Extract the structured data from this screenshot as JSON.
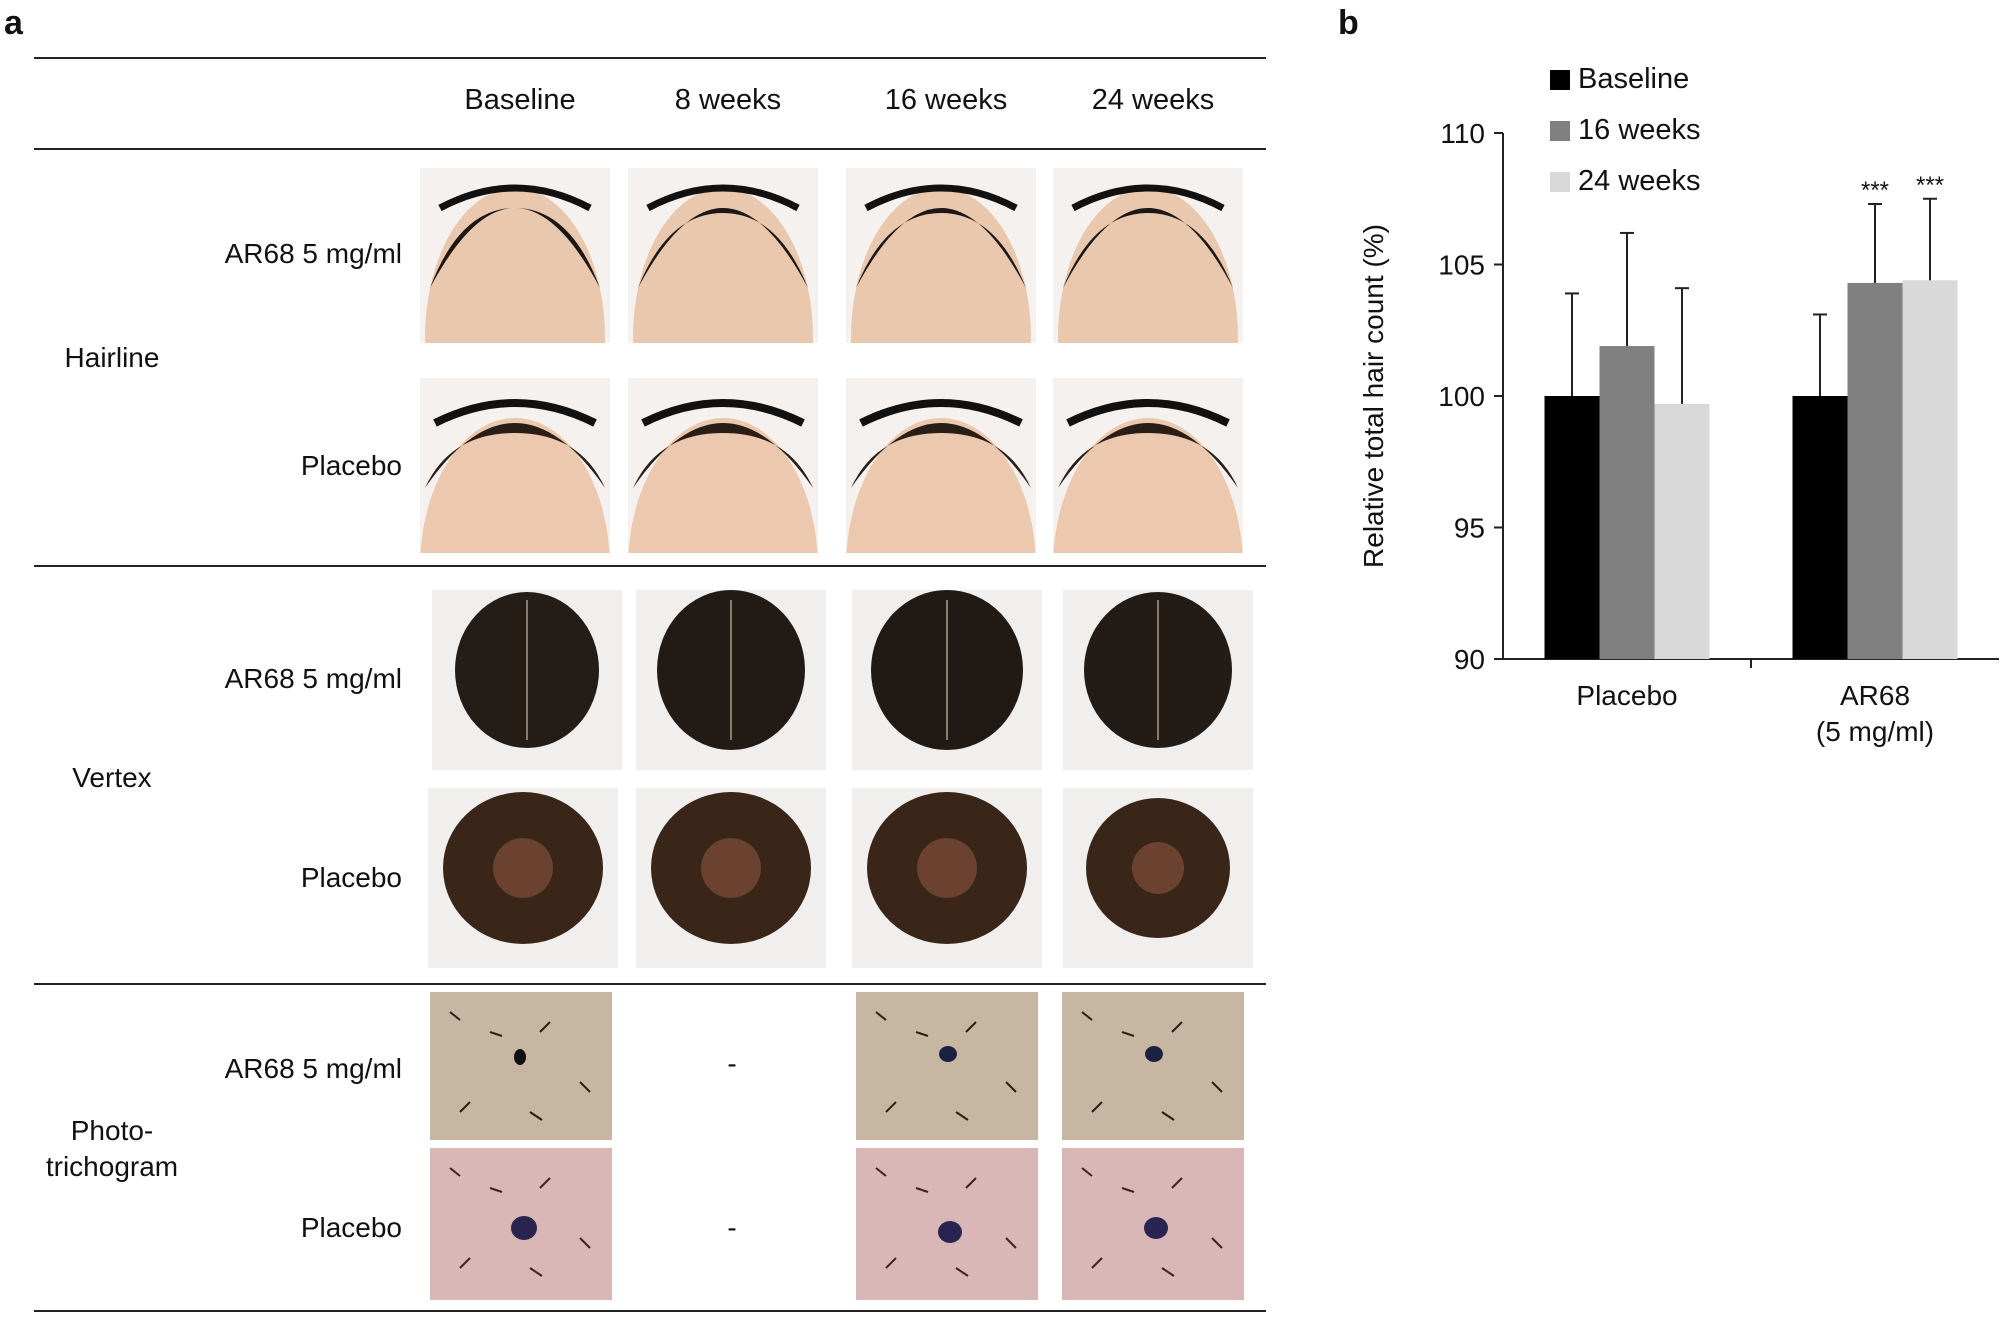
{
  "panel_a": {
    "letter": "a",
    "column_headers": [
      "Baseline",
      "8 weeks",
      "16 weeks",
      "24 weeks"
    ],
    "sections": [
      {
        "label": "Hairline",
        "rows": [
          {
            "label": "AR68 5 mg/ml"
          },
          {
            "label": "Placebo"
          }
        ]
      },
      {
        "label": "Vertex",
        "rows": [
          {
            "label": "AR68 5 mg/ml"
          },
          {
            "label": "Placebo"
          }
        ]
      },
      {
        "label": "Photo-\ntrichogram",
        "rows": [
          {
            "label": "AR68 5 mg/ml"
          },
          {
            "label": "Placebo"
          }
        ],
        "missing_symbol": "-"
      }
    ]
  },
  "panel_b": {
    "letter": "b",
    "chart_data": {
      "type": "bar",
      "categories": [
        "Placebo",
        "AR68\n(5 mg/ml)"
      ],
      "series": [
        {
          "name": "Baseline",
          "values": [
            100,
            100
          ],
          "errors": [
            3.9,
            3.1
          ],
          "color": "#000000"
        },
        {
          "name": "16 weeks",
          "values": [
            101.9,
            104.3
          ],
          "errors": [
            4.3,
            3.0
          ],
          "color": "#808080"
        },
        {
          "name": "24 weeks",
          "values": [
            99.7,
            104.4
          ],
          "errors": [
            4.4,
            3.1
          ],
          "color": "#d9d9d9"
        }
      ],
      "annotations": [
        {
          "category": 1,
          "series": 1,
          "text": "***"
        },
        {
          "category": 1,
          "series": 2,
          "text": "***"
        }
      ],
      "ylabel": "Relative total hair count (%)",
      "xlabel": "",
      "ylim": [
        90,
        110
      ],
      "yticks": [
        90,
        95,
        100,
        105,
        110
      ],
      "legend_position": "top-left"
    }
  }
}
